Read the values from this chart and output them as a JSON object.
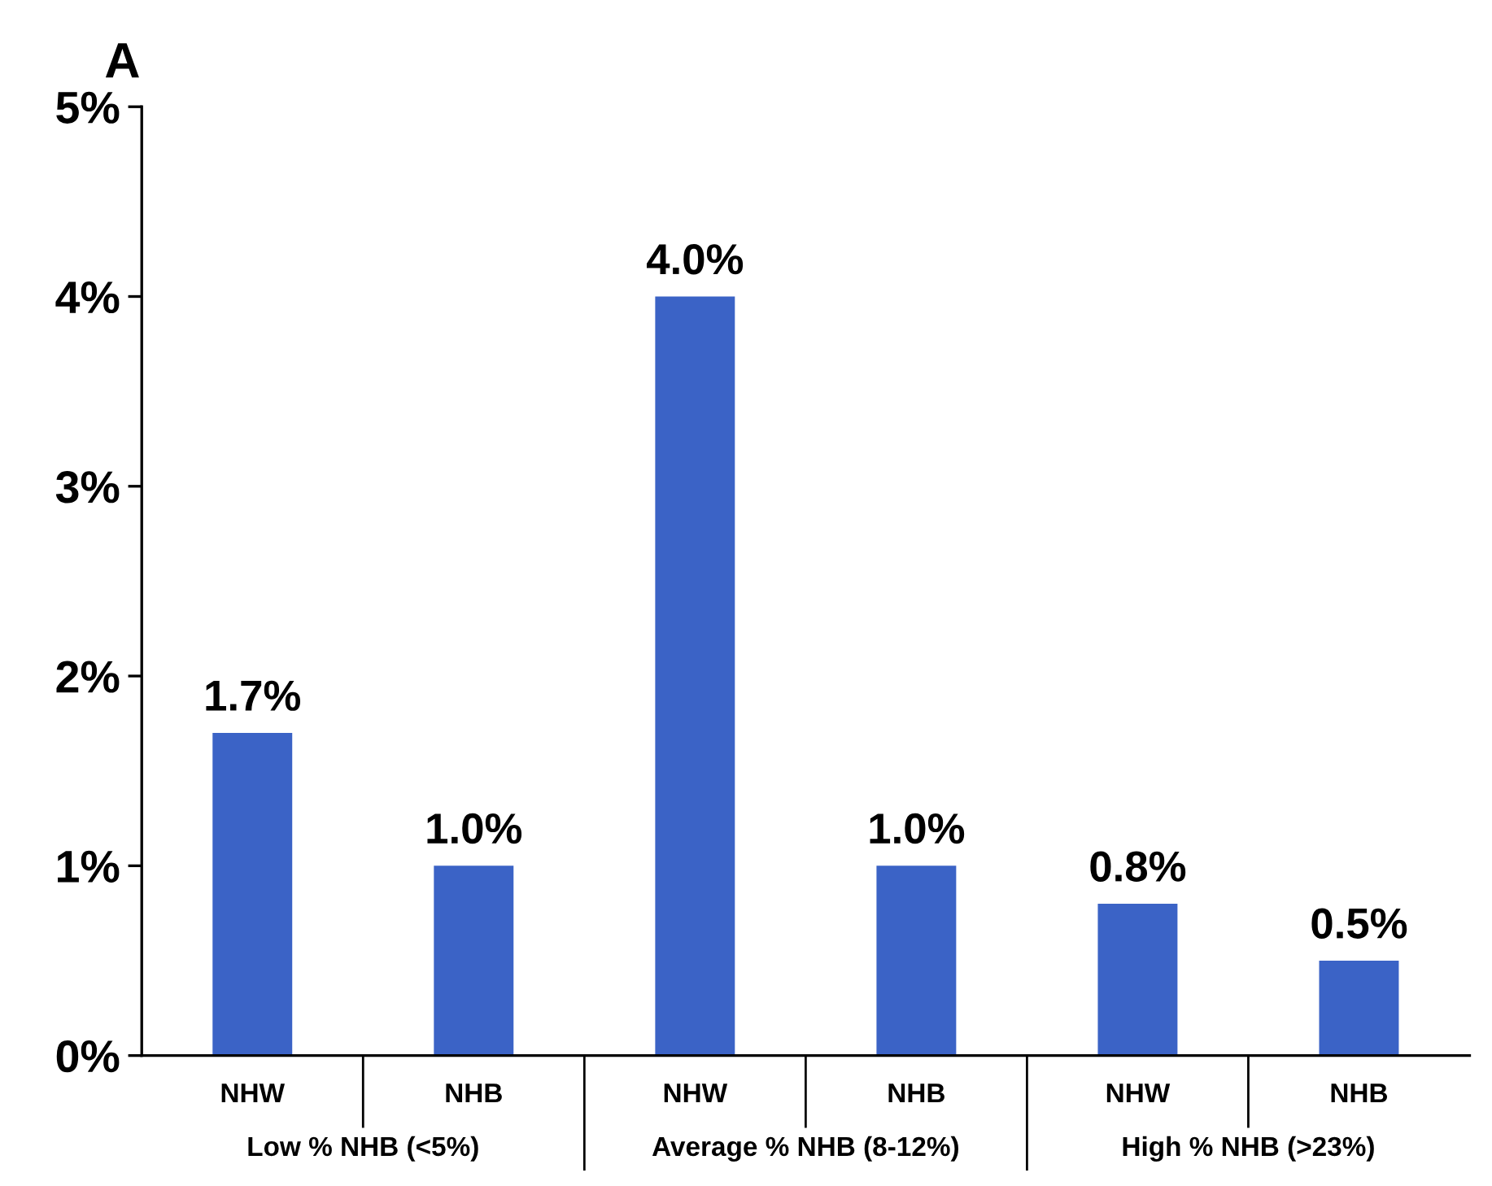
{
  "chart_data": {
    "type": "bar",
    "title": "A",
    "categories": [
      "NHW",
      "NHB",
      "NHW",
      "NHB",
      "NHW",
      "NHB"
    ],
    "values": [
      1.7,
      1.0,
      4.0,
      1.0,
      0.8,
      0.5
    ],
    "value_labels": [
      "1.7%",
      "1.0%",
      "4.0%",
      "1.0%",
      "0.8%",
      "0.5%"
    ],
    "color": "#3b63c6",
    "ylim": [
      0,
      5
    ],
    "yticks": [
      {
        "value": 0,
        "label": "0%"
      },
      {
        "value": 1,
        "label": "1%"
      },
      {
        "value": 2,
        "label": "2%"
      },
      {
        "value": 3,
        "label": "3%"
      },
      {
        "value": 4,
        "label": "4%"
      },
      {
        "value": 5,
        "label": "5%"
      }
    ],
    "annotations": [
      "Low % NHB (<5%)",
      "Average % NHB (8-12%)",
      "High % NHB (>23%)"
    ],
    "grid": false,
    "legend": false
  }
}
